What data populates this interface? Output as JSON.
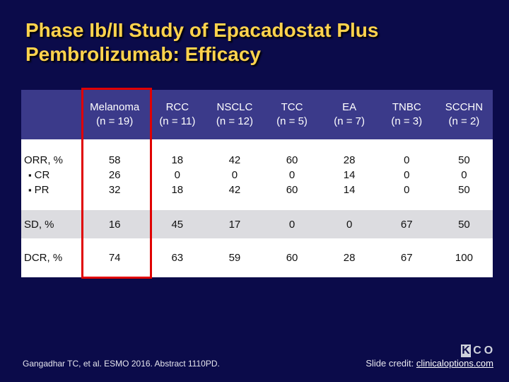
{
  "slide": {
    "title_line1": "Phase Ib/II Study of Epacadostat Plus",
    "title_line2": "Pembrolizumab: Efficacy",
    "citation": "Gangadhar TC, et al. ESMO 2016. Abstract 1110PD.",
    "credit_prefix": "Slide credit: ",
    "credit_link": "clinicaloptions.com",
    "logo_glyphs": [
      "K",
      "C",
      "O"
    ],
    "colors": {
      "background": "#0b0b4a",
      "title": "#ffd34d",
      "header_row": "#3b3a8a",
      "highlight_border": "#e00000",
      "shaded_row": "#dcdce0"
    }
  },
  "table": {
    "columns": [
      {
        "name": "Melanoma",
        "n": "(n = 19)"
      },
      {
        "name": "RCC",
        "n": "(n = 11)"
      },
      {
        "name": "NSCLC",
        "n": "(n = 12)"
      },
      {
        "name": "TCC",
        "n": "(n = 5)"
      },
      {
        "name": "EA",
        "n": "(n = 7)"
      },
      {
        "name": "TNBC",
        "n": "(n = 3)"
      },
      {
        "name": "SCCHN",
        "n": "(n = 2)"
      }
    ],
    "rows": {
      "orr": {
        "label": "ORR, %",
        "sub_labels": [
          "CR",
          "PR"
        ],
        "values": [
          [
            "58",
            "26",
            "32"
          ],
          [
            "18",
            "0",
            "18"
          ],
          [
            "42",
            "0",
            "42"
          ],
          [
            "60",
            "0",
            "60"
          ],
          [
            "28",
            "14",
            "14"
          ],
          [
            "0",
            "0",
            "0"
          ],
          [
            "50",
            "0",
            "50"
          ]
        ]
      },
      "sd": {
        "label": "SD, %",
        "values": [
          "16",
          "45",
          "17",
          "0",
          "0",
          "67",
          "50"
        ]
      },
      "dcr": {
        "label": "DCR, %",
        "values": [
          "74",
          "63",
          "59",
          "60",
          "28",
          "67",
          "100"
        ]
      }
    },
    "highlighted_column": "Melanoma"
  }
}
